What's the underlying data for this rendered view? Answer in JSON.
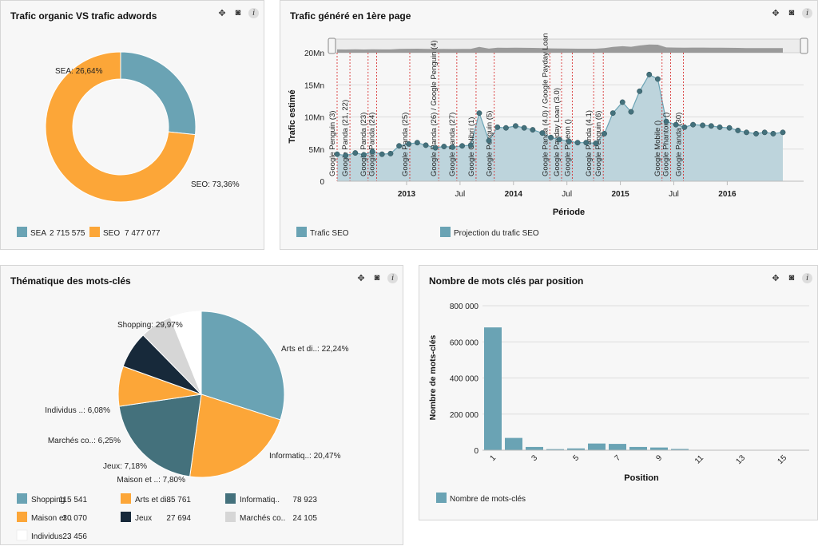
{
  "panels": {
    "donut": {
      "title": "Trafic organic VS trafic adwords"
    },
    "seo": {
      "title": "Trafic généré en 1ère page"
    },
    "theme": {
      "title": "Thématique des mots-clés"
    },
    "positions": {
      "title": "Nombre de mots clés par position"
    }
  },
  "tool_icons": [
    "expand-icon",
    "camera-icon",
    "info-icon"
  ],
  "info_glyph": "i",
  "colors": {
    "blue": "#6aa3b4",
    "orange": "#fca638",
    "dark": "#44717c",
    "navy": "#17293a",
    "lightgray": "#d6d6d6",
    "white": "#ffffff"
  },
  "chart_data": [
    {
      "id": "donut",
      "type": "pie",
      "title": "Trafic organic VS trafic adwords",
      "slices": [
        {
          "name": "SEA",
          "label": "SEA: 26,64%",
          "percent": 26.64,
          "color": "#6aa3b4"
        },
        {
          "name": "SEO",
          "label": "SEO: 73,36%",
          "percent": 73.36,
          "color": "#fca638"
        }
      ],
      "legend": [
        {
          "name": "SEA",
          "value": "2 715 575",
          "color": "#6aa3b4"
        },
        {
          "name": "SEO",
          "value": "7 477 077",
          "color": "#fca638"
        }
      ]
    },
    {
      "id": "seo",
      "type": "area",
      "title": "Trafic généré en 1ère page",
      "xlabel": "Période",
      "ylabel": "Trafic estimé",
      "ylim": [
        0,
        20
      ],
      "yticks": [
        {
          "v": 0,
          "label": "0"
        },
        {
          "v": 5,
          "label": "5Mn"
        },
        {
          "v": 10,
          "label": "10Mn"
        },
        {
          "v": 15,
          "label": "15Mn"
        },
        {
          "v": 20,
          "label": "20Mn"
        }
      ],
      "xlim": [
        2012.35,
        2016.58
      ],
      "xticks": [
        {
          "v": 2013.0,
          "label": "2013",
          "bold": true
        },
        {
          "v": 2013.5,
          "label": "Jul",
          "bold": false
        },
        {
          "v": 2014.0,
          "label": "2014",
          "bold": true
        },
        {
          "v": 2014.5,
          "label": "Jul",
          "bold": false
        },
        {
          "v": 2015.0,
          "label": "2015",
          "bold": true
        },
        {
          "v": 2015.5,
          "label": "Jul",
          "bold": false
        },
        {
          "v": 2016.0,
          "label": "2016",
          "bold": true
        }
      ],
      "series": [
        {
          "name": "Trafic SEO",
          "color": "#6aa3b4",
          "x": [
            2012.35,
            2012.43,
            2012.52,
            2012.6,
            2012.68,
            2012.77,
            2012.85,
            2012.93,
            2013.02,
            2013.1,
            2013.18,
            2013.27,
            2013.35,
            2013.43,
            2013.52,
            2013.6,
            2013.68,
            2013.77,
            2013.85,
            2013.93,
            2014.02,
            2014.1,
            2014.18,
            2014.27,
            2014.35,
            2014.43,
            2014.52,
            2014.6,
            2014.68,
            2014.77,
            2014.85,
            2014.93,
            2015.02,
            2015.1,
            2015.18,
            2015.27,
            2015.35,
            2015.43,
            2015.52,
            2015.6,
            2015.68,
            2015.77,
            2015.85,
            2015.93,
            2016.02,
            2016.1,
            2016.18,
            2016.27,
            2016.35,
            2016.43,
            2016.52
          ],
          "y": [
            4.2,
            4.0,
            4.4,
            4.1,
            4.6,
            4.2,
            4.3,
            5.5,
            5.8,
            6.0,
            5.6,
            5.2,
            5.4,
            5.3,
            5.5,
            5.6,
            10.6,
            6.3,
            8.4,
            8.3,
            8.6,
            8.3,
            8.0,
            7.5,
            6.8,
            6.5,
            6.2,
            6.0,
            6.0,
            5.9,
            7.4,
            10.6,
            12.3,
            10.8,
            14.0,
            16.6,
            15.9,
            9.3,
            8.8,
            8.4,
            8.8,
            8.7,
            8.6,
            8.4,
            8.3,
            7.9,
            7.6,
            7.4,
            7.6,
            7.4,
            7.6
          ]
        },
        {
          "name": "Projection du trafic SEO",
          "color": "#6aa3b4"
        }
      ],
      "events": [
        {
          "x": 2012.35,
          "label": "Google Penguin (3)"
        },
        {
          "x": 2012.47,
          "label": "Google Panda (21, 22)"
        },
        {
          "x": 2012.64,
          "label": "Google Panda (23)"
        },
        {
          "x": 2012.72,
          "label": "Google Panda (24)"
        },
        {
          "x": 2013.03,
          "label": "Google Panda (25)"
        },
        {
          "x": 2013.3,
          "label": "Google Panda (26) / Google Penguin (4)"
        },
        {
          "x": 2013.47,
          "label": "Google Panda (27)"
        },
        {
          "x": 2013.65,
          "label": "Google Colibri (1)"
        },
        {
          "x": 2013.82,
          "label": "Google Penguin (5)"
        },
        {
          "x": 2014.34,
          "label": "Google Panda (4.0) / Google Payday Loan"
        },
        {
          "x": 2014.45,
          "label": "Google Payday Loan (3.0)"
        },
        {
          "x": 2014.55,
          "label": "Google Pigeon ()"
        },
        {
          "x": 2014.75,
          "label": "Google Panda (4.1)"
        },
        {
          "x": 2014.84,
          "label": "Google Penguin (6)"
        },
        {
          "x": 2015.39,
          "label": "Google Mobile ()"
        },
        {
          "x": 2015.47,
          "label": "Google Phantom ()"
        },
        {
          "x": 2015.59,
          "label": "Google Panda (30)"
        }
      ],
      "navigator_top": "20Mn",
      "legend": [
        {
          "name": "Trafic SEO",
          "color": "#6aa3b4"
        },
        {
          "name": "Projection du trafic SEO",
          "color": "#6aa3b4"
        }
      ]
    },
    {
      "id": "theme",
      "type": "pie",
      "title": "Thématique des mots-clés",
      "slices": [
        {
          "name": "Shopping",
          "label": "Shopping: 29,97%",
          "percent": 29.97,
          "color": "#6aa3b4"
        },
        {
          "name": "Arts et di..",
          "label": "Arts et di..: 22,24%",
          "percent": 22.24,
          "color": "#fca638"
        },
        {
          "name": "Informatiq..",
          "label": "Informatiq..: 20,47%",
          "percent": 20.47,
          "color": "#44717c"
        },
        {
          "name": "Maison et ..",
          "label": "Maison et ..: 7,80%",
          "percent": 7.8,
          "color": "#fca638"
        },
        {
          "name": "Jeux",
          "label": "Jeux: 7,18%",
          "percent": 7.18,
          "color": "#17293a"
        },
        {
          "name": "Marchés co..",
          "label": "Marchés co..: 6,25%",
          "percent": 6.25,
          "color": "#d6d6d6"
        },
        {
          "name": "Individus ..",
          "label": "Individus ..: 6,08%",
          "percent": 6.08,
          "color": "#ffffff"
        }
      ],
      "legend": [
        {
          "name": "Shopping",
          "value": "115 541",
          "color": "#6aa3b4"
        },
        {
          "name": "Arts et di..",
          "value": "85 761",
          "color": "#fca638"
        },
        {
          "name": "Informatiq..",
          "value": "78 923",
          "color": "#44717c"
        },
        {
          "name": "Maison et ..",
          "value": "30 070",
          "color": "#fca638"
        },
        {
          "name": "Jeux",
          "value": "27 694",
          "color": "#17293a"
        },
        {
          "name": "Marchés co..",
          "value": "24 105",
          "color": "#d6d6d6"
        },
        {
          "name": "Individus ..",
          "value": "23 456",
          "color": "#ffffff"
        }
      ]
    },
    {
      "id": "positions",
      "type": "bar",
      "title": "Nombre de mots clés par position",
      "xlabel": "Position",
      "ylabel": "Nombre de mots-clés",
      "ylim": [
        0,
        800000
      ],
      "yticks": [
        {
          "v": 0,
          "label": "0"
        },
        {
          "v": 200000,
          "label": "200 000"
        },
        {
          "v": 400000,
          "label": "400 000"
        },
        {
          "v": 600000,
          "label": "600 000"
        },
        {
          "v": 800000,
          "label": "800 000"
        }
      ],
      "categories": [
        1,
        2,
        3,
        4,
        5,
        6,
        7,
        8,
        9,
        10,
        11,
        12,
        13,
        14,
        15
      ],
      "xtick_labels": [
        "1",
        "3",
        "5",
        "7",
        "9",
        "11",
        "13",
        "15"
      ],
      "values": [
        680000,
        68000,
        18000,
        6000,
        10000,
        37000,
        35000,
        18000,
        15000,
        7000,
        0,
        0,
        0,
        0,
        0
      ],
      "color": "#6aa3b4",
      "legend": [
        {
          "name": "Nombre de mots-clés",
          "color": "#6aa3b4"
        }
      ]
    }
  ]
}
